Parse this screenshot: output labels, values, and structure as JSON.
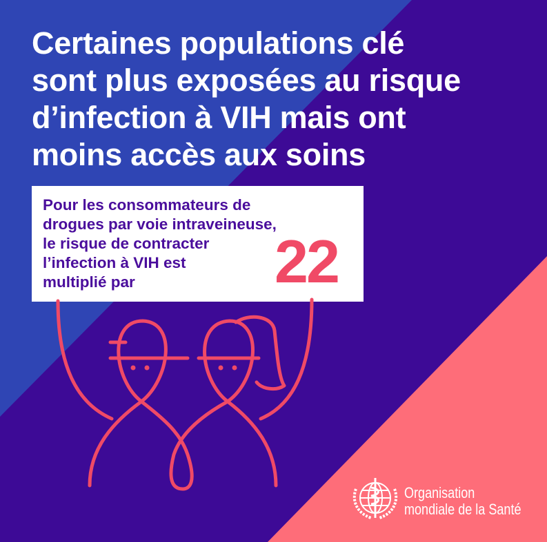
{
  "colors": {
    "blue": "#2f45b4",
    "purple": "#3d0a96",
    "pink": "#fe6d79",
    "accent": "#f04a66",
    "card_text": "#4a0d9c"
  },
  "title": {
    "lines": [
      "Certaines populations clé",
      "sont plus exposées au risque",
      "d’infection à VIH mais ont",
      "moins accès aux soins"
    ]
  },
  "card": {
    "lines": [
      "Pour les consommateurs de",
      "drogues par voie intraveineuse,",
      "le risque de contracter",
      "l’infection à VIH est",
      "multiplié par"
    ],
    "value": "22"
  },
  "logo": {
    "icon": "who-emblem-icon",
    "line1": "Organisation",
    "line2": "mondiale de la Santé"
  }
}
